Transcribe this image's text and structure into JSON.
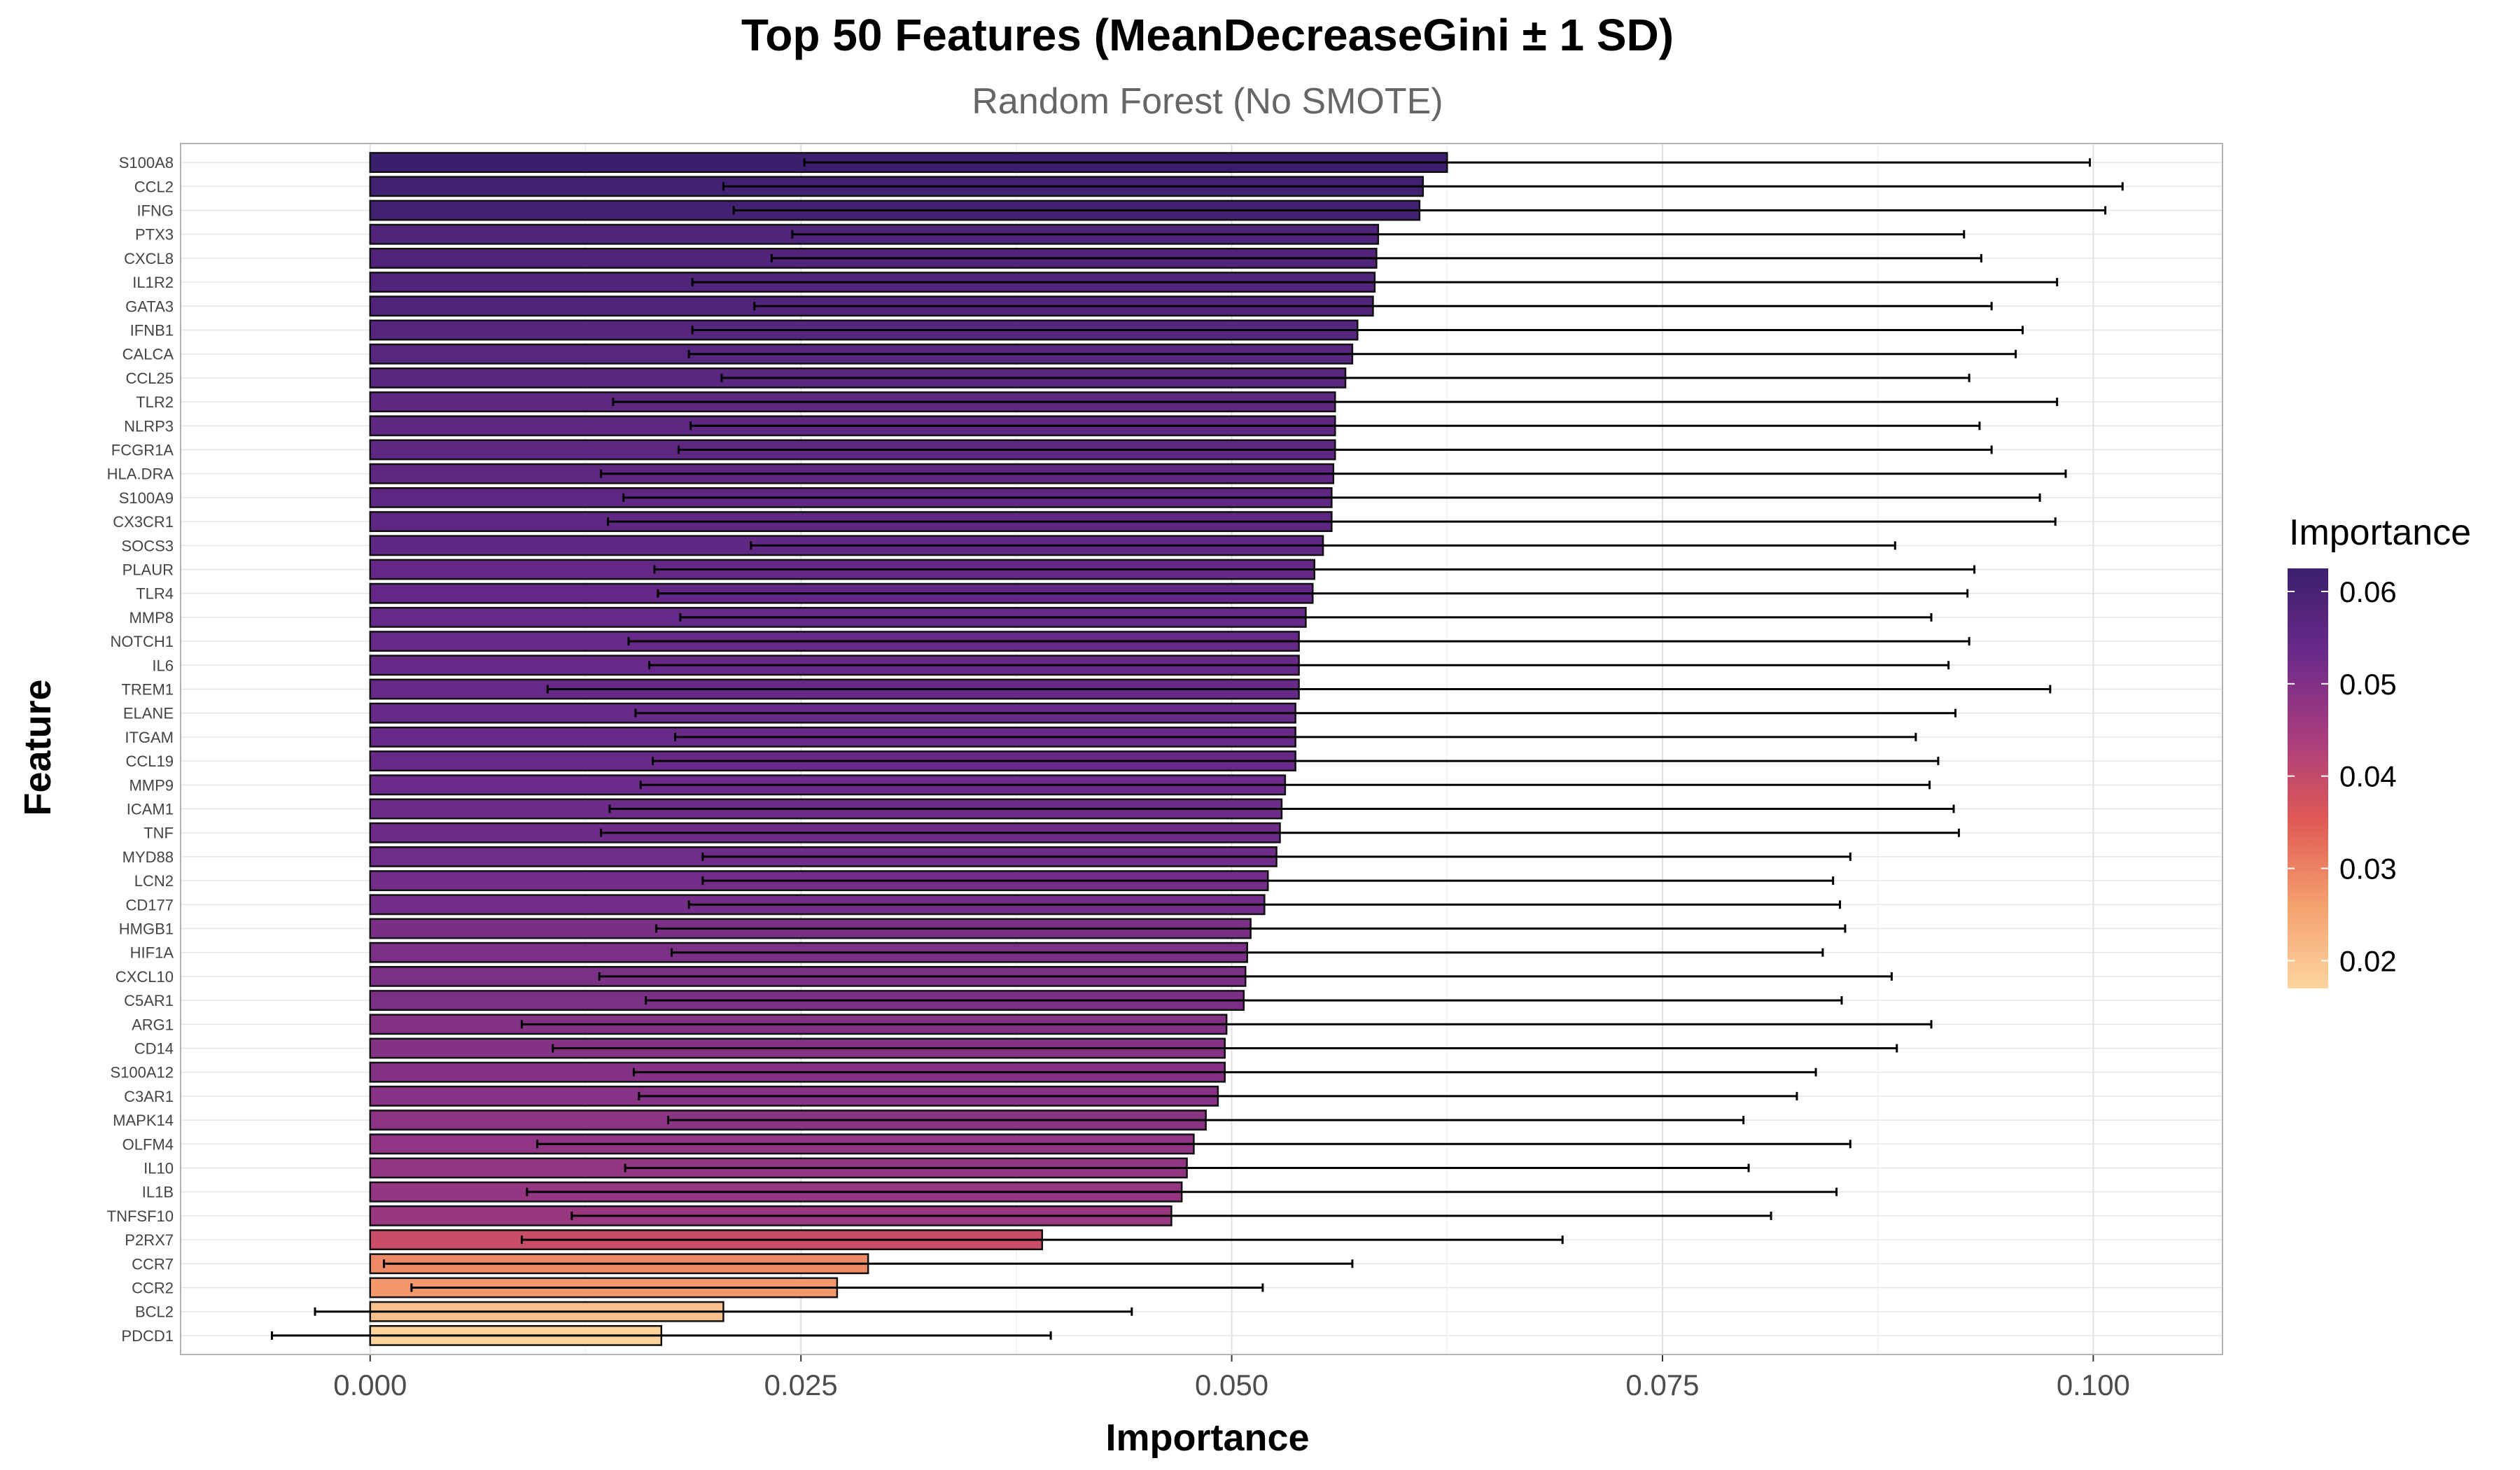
{
  "chart_data": {
    "type": "bar",
    "orientation": "horizontal",
    "title": "Top 50 Features (MeanDecreaseGini ± 1 SD)",
    "subtitle": "Random Forest (No SMOTE)",
    "xlabel": "Importance",
    "ylabel": "Feature",
    "xlim": [
      -0.011,
      0.1075
    ],
    "xticks": [
      "0.000",
      "0.025",
      "0.050",
      "0.075",
      "0.100"
    ],
    "xtick_values": [
      0,
      0.025,
      0.05,
      0.075,
      0.1
    ],
    "grid": true,
    "legend": {
      "title": "Importance",
      "position": "right",
      "ticks": [
        "0.02",
        "0.03",
        "0.04",
        "0.05",
        "0.06"
      ],
      "tick_values": [
        0.02,
        0.03,
        0.04,
        0.05,
        0.06
      ],
      "range": [
        0.017,
        0.0625
      ],
      "colors": [
        "#fdd49e",
        "#f4a06e",
        "#e05a55",
        "#a83c7e",
        "#6a2a8a",
        "#3b1f6e"
      ]
    },
    "categories": [
      "S100A8",
      "CCL2",
      "IFNG",
      "PTX3",
      "CXCL8",
      "IL1R2",
      "GATA3",
      "IFNB1",
      "CALCA",
      "CCL25",
      "TLR2",
      "NLRP3",
      "FCGR1A",
      "HLA.DRA",
      "S100A9",
      "CX3CR1",
      "SOCS3",
      "PLAUR",
      "TLR4",
      "MMP8",
      "NOTCH1",
      "IL6",
      "TREM1",
      "ELANE",
      "ITGAM",
      "CCL19",
      "MMP9",
      "ICAM1",
      "TNF",
      "MYD88",
      "LCN2",
      "CD177",
      "HMGB1",
      "HIF1A",
      "CXCL10",
      "C5AR1",
      "ARG1",
      "CD14",
      "S100A12",
      "C3AR1",
      "MAPK14",
      "OLFM4",
      "IL10",
      "IL1B",
      "TNFSF10",
      "P2RX7",
      "CCR7",
      "CCR2",
      "BCL2",
      "PDCD1"
    ],
    "values": [
      0.0625,
      0.0611,
      0.0609,
      0.0585,
      0.0584,
      0.0583,
      0.0582,
      0.0573,
      0.057,
      0.0566,
      0.056,
      0.056,
      0.056,
      0.0559,
      0.0558,
      0.0558,
      0.0553,
      0.0548,
      0.0547,
      0.0543,
      0.0539,
      0.0539,
      0.0539,
      0.0537,
      0.0537,
      0.0537,
      0.0531,
      0.0529,
      0.0528,
      0.0526,
      0.0521,
      0.0519,
      0.0511,
      0.0509,
      0.0508,
      0.0507,
      0.0497,
      0.0496,
      0.0496,
      0.0492,
      0.0485,
      0.0478,
      0.0474,
      0.0471,
      0.0465,
      0.039,
      0.0289,
      0.0271,
      0.0205,
      0.0169
    ],
    "sd": [
      0.0373,
      0.0406,
      0.0398,
      0.034,
      0.0351,
      0.0396,
      0.0359,
      0.0386,
      0.0385,
      0.0362,
      0.0419,
      0.0374,
      0.0381,
      0.0425,
      0.0411,
      0.042,
      0.0332,
      0.0383,
      0.038,
      0.0363,
      0.0389,
      0.0377,
      0.0436,
      0.0383,
      0.036,
      0.0373,
      0.0374,
      0.039,
      0.0394,
      0.0333,
      0.0328,
      0.0334,
      0.0345,
      0.0334,
      0.0375,
      0.0347,
      0.0409,
      0.039,
      0.0343,
      0.0336,
      0.0312,
      0.0381,
      0.0326,
      0.038,
      0.0348,
      0.0302,
      0.0281,
      0.0247,
      0.0237,
      0.0226
    ]
  }
}
